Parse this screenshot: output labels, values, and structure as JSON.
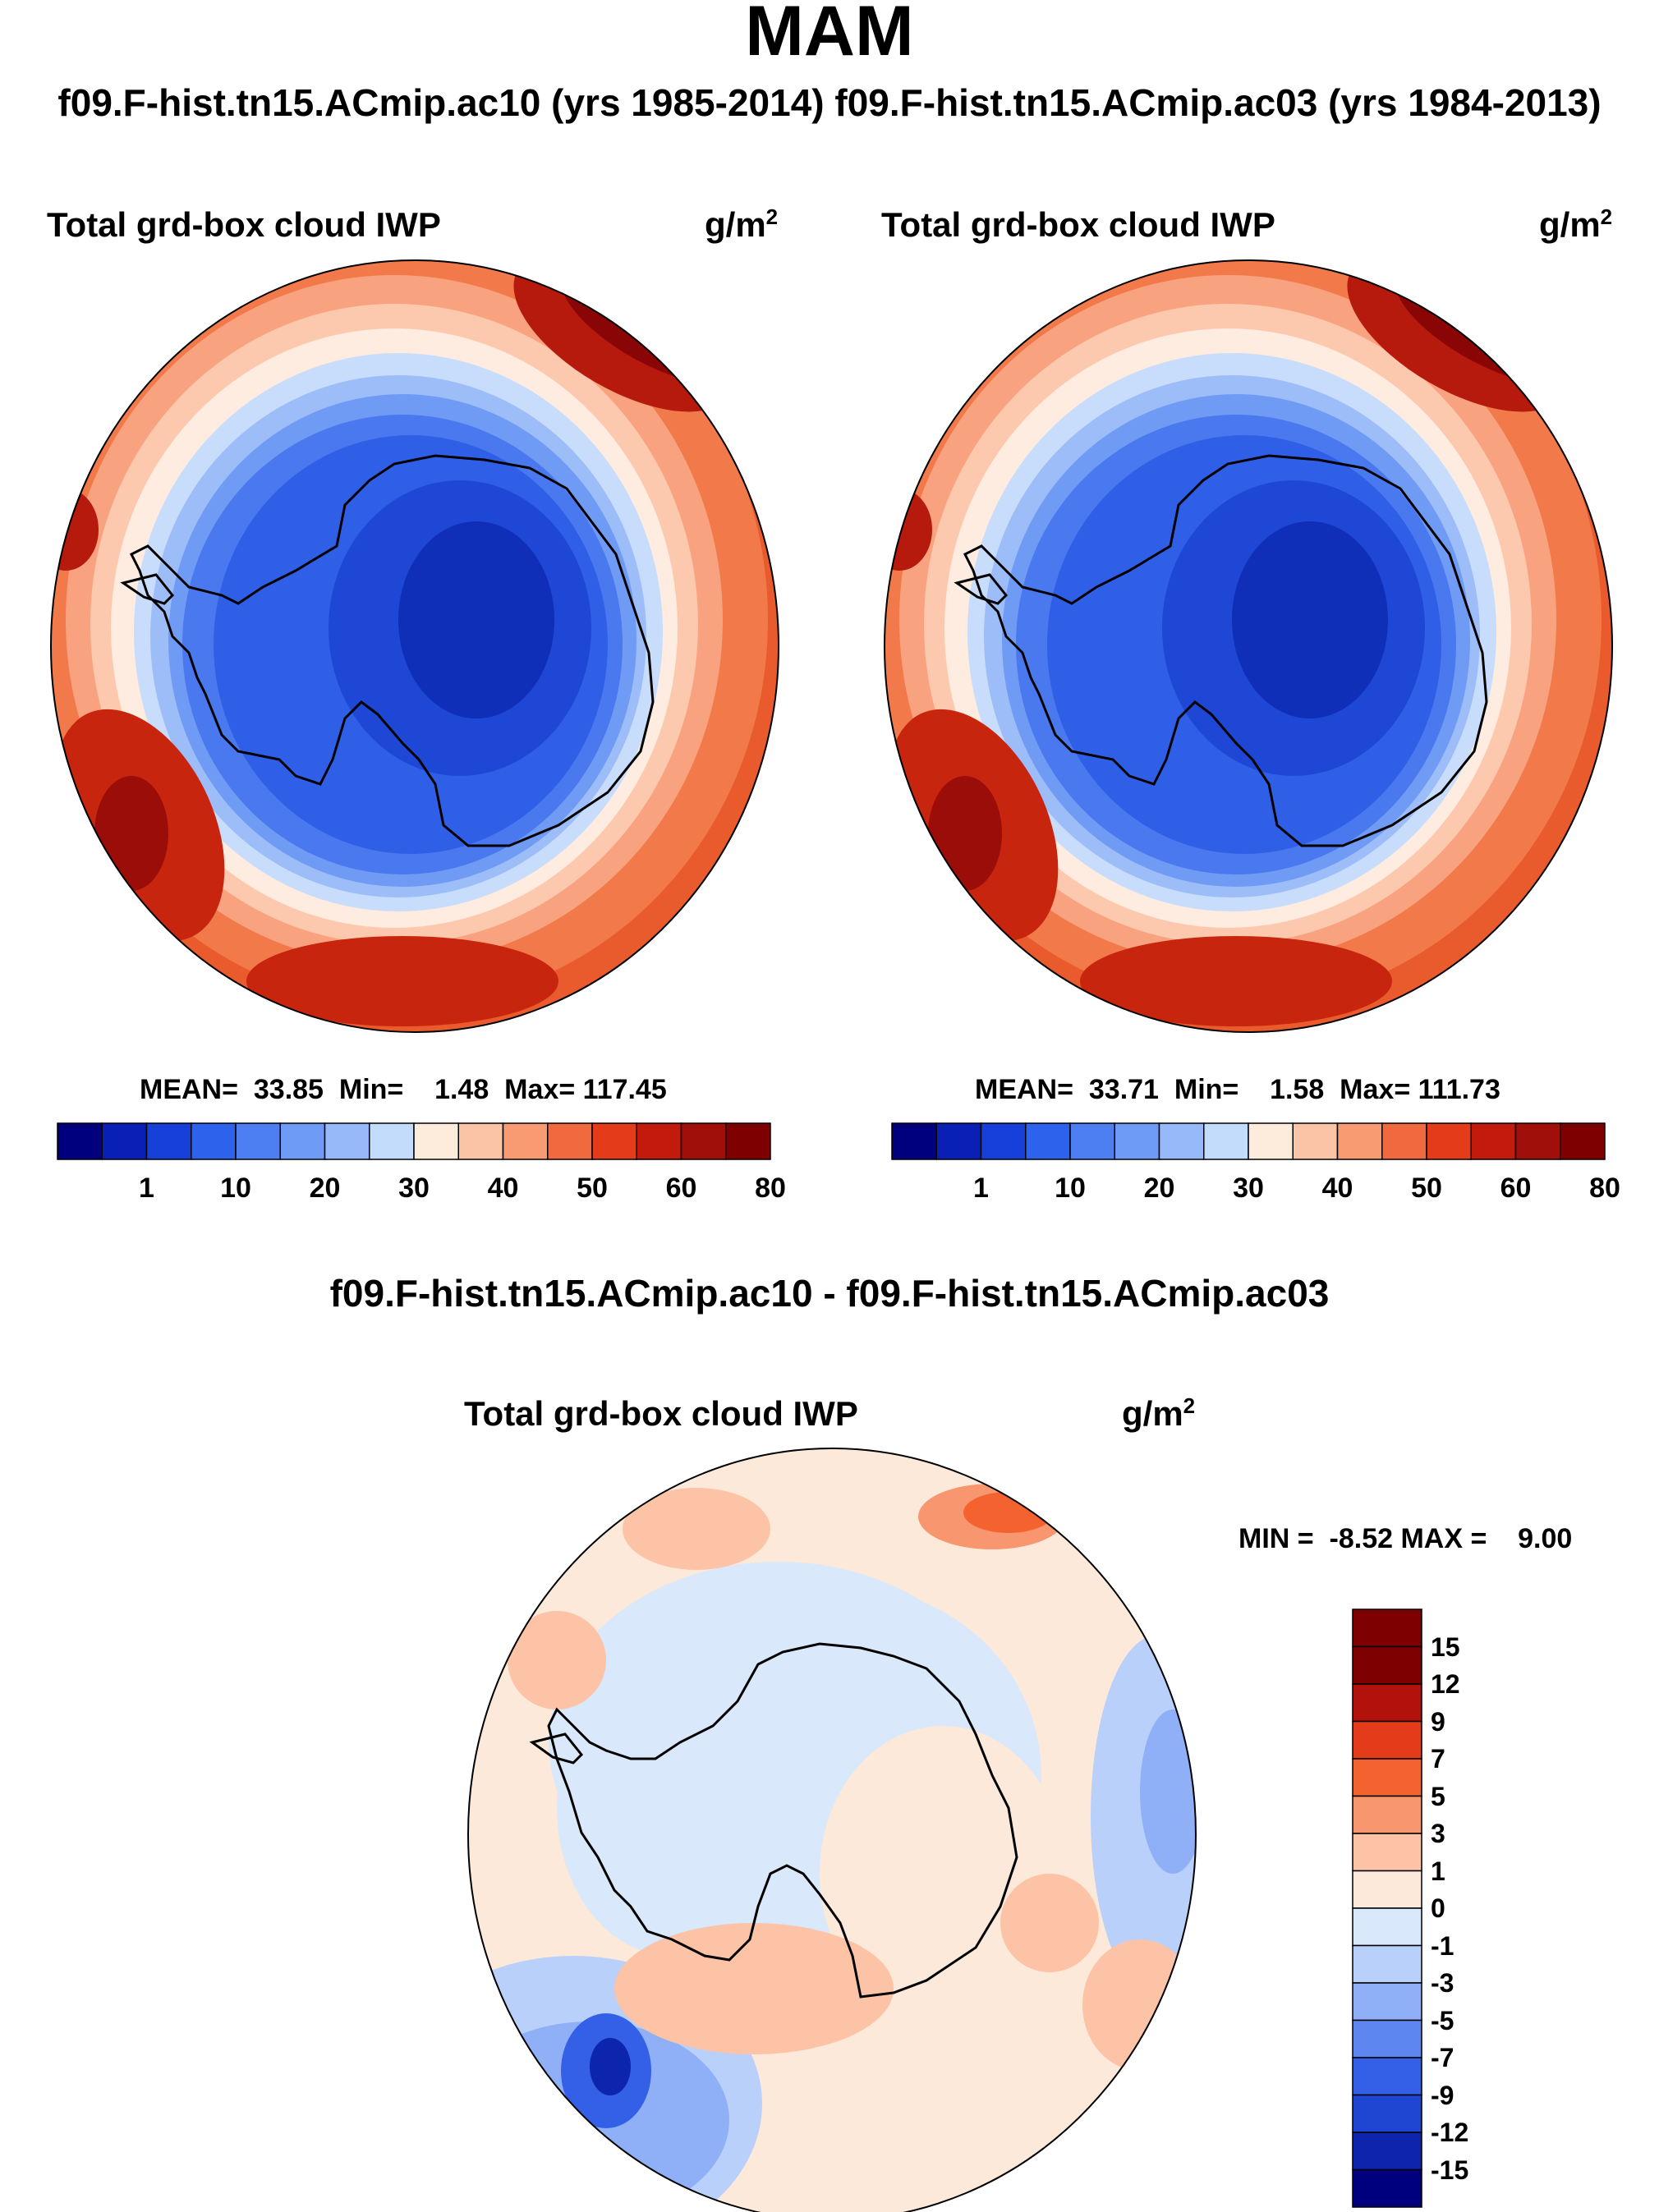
{
  "figure": {
    "title": "MAM",
    "subtitle": "f09.F-hist.tn15.ACmip.ac10 (yrs 1985-2014) f09.F-hist.tn15.ACmip.ac03 (yrs 1984-2013)"
  },
  "panels": [
    {
      "title": "Total grd-box cloud IWP",
      "units_base": "g/m",
      "units_exp": "2",
      "stats": {
        "mean_label": "MEAN=",
        "mean": "33.85",
        "min_label": "Min=",
        "min": "1.48",
        "max_label": "Max=",
        "max": "117.45"
      }
    },
    {
      "title": "Total grd-box cloud IWP",
      "units_base": "g/m",
      "units_exp": "2",
      "stats": {
        "mean_label": "MEAN=",
        "mean": "33.71",
        "min_label": "Min=",
        "min": "1.58",
        "max_label": "Max=",
        "max": "111.73"
      }
    }
  ],
  "colorbar": {
    "colors": [
      "#00007f",
      "#0a1fb5",
      "#1640d9",
      "#2c62ec",
      "#4d7ef2",
      "#6e9bf5",
      "#97b9fa",
      "#c4dcfc",
      "#fdebdc",
      "#fcc4a7",
      "#f89a72",
      "#f16a3f",
      "#e43b1a",
      "#c21a0c",
      "#a00f0a",
      "#7f0000"
    ],
    "tick_labels": [
      "1",
      "10",
      "20",
      "30",
      "40",
      "50",
      "60",
      "80"
    ]
  },
  "diff": {
    "title": "f09.F-hist.tn15.ACmip.ac10 - f09.F-hist.tn15.ACmip.ac03",
    "panel_title": "Total grd-box cloud IWP",
    "units_base": "g/m",
    "units_exp": "2",
    "minmax": "MIN =  -8.52 MAX =    9.00",
    "colorbar": {
      "colors": [
        "#7f0000",
        "#b3120c",
        "#e43b1a",
        "#f4622f",
        "#f89670",
        "#fcc3a6",
        "#fde9da",
        "#d9e8fb",
        "#b9d0fa",
        "#8fb0f6",
        "#5d86f0",
        "#3360e6",
        "#1f46d2",
        "#0d25ad",
        "#00007f"
      ],
      "labels": [
        "15",
        "12",
        "9",
        "7",
        "5",
        "3",
        "1",
        "0",
        "-1",
        "-3",
        "-5",
        "-7",
        "-9",
        "-12",
        "-15"
      ]
    }
  }
}
